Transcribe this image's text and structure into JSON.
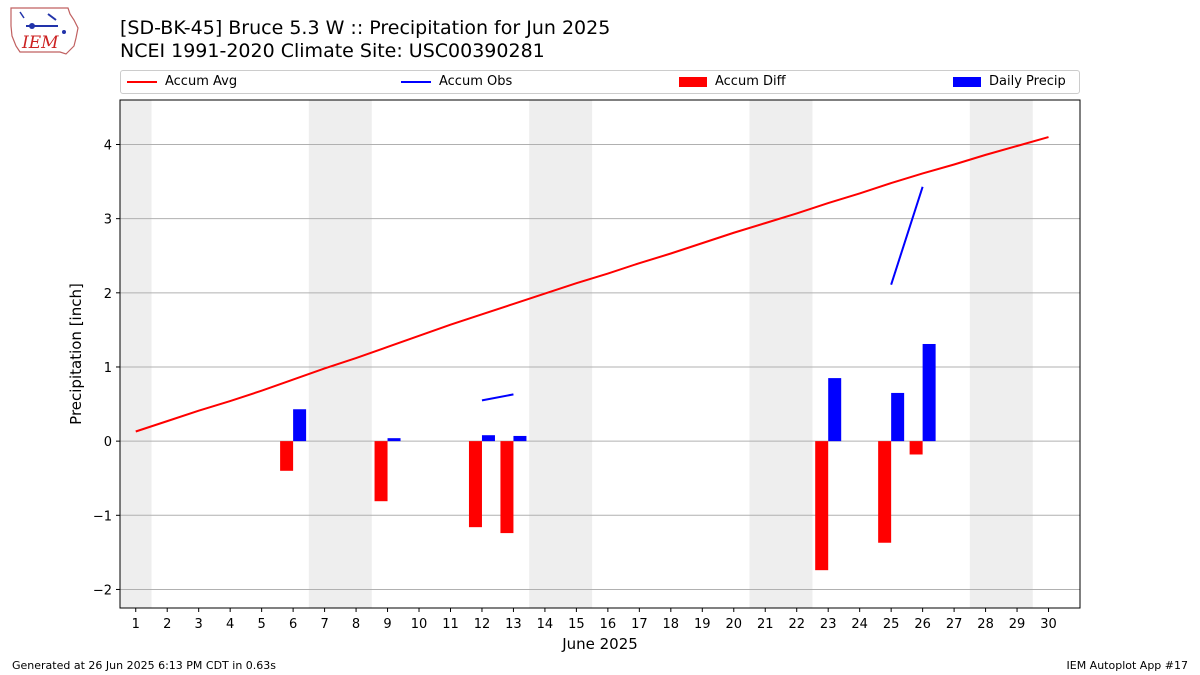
{
  "header": {
    "title_line1": "[SD-BK-45] Bruce 5.3 W :: Precipitation for Jun 2025",
    "title_line2": "NCEI 1991-2020 Climate Site: USC00390281",
    "logo_text": "IEM"
  },
  "legend": {
    "items": [
      {
        "label": "Accum Avg",
        "kind": "line",
        "color": "#ff0000"
      },
      {
        "label": "Accum Obs",
        "kind": "line",
        "color": "#0000ff"
      },
      {
        "label": "Accum Diff",
        "kind": "box",
        "color": "#ff0000"
      },
      {
        "label": "Daily Precip",
        "kind": "box",
        "color": "#0000ff"
      }
    ],
    "placement": "top"
  },
  "footer": {
    "left": "Generated at 26 Jun 2025 6:13 PM CDT in 0.63s",
    "right": "IEM Autoplot App #17"
  },
  "chart_data": {
    "type": "bar",
    "xlabel": "June 2025",
    "ylabel": "Precipitation [inch]",
    "xlim": [
      0.5,
      31
    ],
    "ylim": [
      -2.25,
      4.6
    ],
    "yticks": [
      -2,
      -1,
      0,
      1,
      2,
      3,
      4
    ],
    "grid": "y",
    "days": [
      1,
      2,
      3,
      4,
      5,
      6,
      7,
      8,
      9,
      10,
      11,
      12,
      13,
      14,
      15,
      16,
      17,
      18,
      19,
      20,
      21,
      22,
      23,
      24,
      25,
      26,
      27,
      28,
      29,
      30
    ],
    "weekend_shading": [
      [
        0.5,
        1.5
      ],
      [
        6.5,
        8.5
      ],
      [
        13.5,
        15.5
      ],
      [
        20.5,
        22.5
      ],
      [
        27.5,
        29.5
      ]
    ],
    "accum_avg": [
      0.13,
      0.27,
      0.41,
      0.54,
      0.68,
      0.83,
      0.98,
      1.12,
      1.27,
      1.42,
      1.57,
      1.71,
      1.85,
      1.99,
      2.13,
      2.26,
      2.4,
      2.53,
      2.67,
      2.81,
      2.94,
      3.07,
      3.21,
      3.34,
      3.48,
      3.61,
      3.73,
      3.86,
      3.98,
      4.1
    ],
    "accum_obs_segments": [
      {
        "x": [
          12,
          13
        ],
        "y": [
          0.55,
          0.63
        ]
      },
      {
        "x": [
          25,
          26
        ],
        "y": [
          2.11,
          3.43
        ]
      }
    ],
    "series": [
      {
        "name": "Accum Diff",
        "color": "#ff0000",
        "x": [
          6,
          9,
          12,
          13,
          23,
          25,
          26
        ],
        "values": [
          -0.4,
          -0.81,
          -1.16,
          -1.24,
          -1.74,
          -1.37,
          -0.18
        ]
      },
      {
        "name": "Daily Precip",
        "color": "#0000ff",
        "x": [
          6,
          9,
          12,
          13,
          23,
          25,
          26
        ],
        "values": [
          0.43,
          0.04,
          0.08,
          0.07,
          0.85,
          0.65,
          1.31
        ]
      }
    ]
  }
}
